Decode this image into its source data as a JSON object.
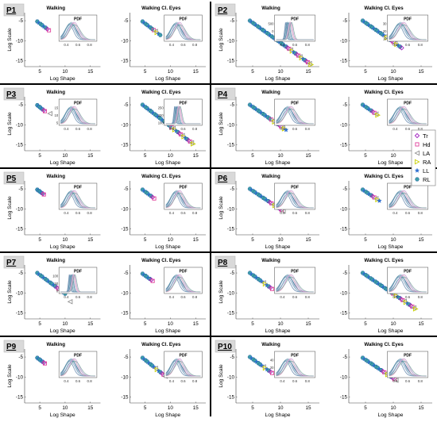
{
  "chart_data": {
    "type": "scatter",
    "x_label": "Log Shape",
    "y_label": "Log Scale",
    "xlim": [
      2,
      17
    ],
    "ylim": [
      -16.5,
      -3
    ],
    "xticks": [
      5,
      10,
      15
    ],
    "yticks": [
      -5,
      -10,
      -15
    ],
    "inset": {
      "title": "PDF",
      "xlim": [
        0.3,
        0.9
      ],
      "xticks": [
        "0.4",
        "0.6",
        "0.8"
      ]
    },
    "legend": {
      "placement": "right-middle",
      "entries": [
        {
          "label": "Tr",
          "marker": "diamond",
          "color": "#a020c0"
        },
        {
          "label": "Hd",
          "marker": "square",
          "color": "#e0409a"
        },
        {
          "label": "LA",
          "marker": "triangle-left",
          "color": "#909090"
        },
        {
          "label": "RA",
          "marker": "triangle-right",
          "color": "#c8d000"
        },
        {
          "label": "LL",
          "marker": "star",
          "color": "#2f6fd0"
        },
        {
          "label": "RL",
          "marker": "hexagon",
          "color": "#3fa0a8"
        }
      ]
    },
    "panels": [
      {
        "label": "P1",
        "conditions": [
          {
            "title": "Walking",
            "line": [
              [
                4.5,
                -5.2
              ],
              [
                6.8,
                -7.4
              ]
            ],
            "outliers": [],
            "inset_yticks": [
              "",
              "",
              ""
            ]
          },
          {
            "title": "Walking Cl. Eyes",
            "line": [
              [
                4.5,
                -5.2
              ],
              [
                8.0,
                -8.6
              ]
            ],
            "outliers": [],
            "inset_yticks": [
              "",
              "",
              ""
            ]
          }
        ]
      },
      {
        "label": "P2",
        "conditions": [
          {
            "title": "Walking",
            "line": [
              [
                4.5,
                -5.0
              ],
              [
                15.5,
                -16.0
              ]
            ],
            "outliers": [],
            "inset_yticks": [
              "500",
              "0",
              ""
            ]
          },
          {
            "title": "Walking Cl. Eyes",
            "line": [
              [
                4.5,
                -5.0
              ],
              [
                11.5,
                -11.8
              ]
            ],
            "outliers": [],
            "inset_yticks": [
              "30",
              "20",
              "10"
            ]
          }
        ]
      },
      {
        "label": "P3",
        "conditions": [
          {
            "title": "Walking",
            "line": [
              [
                4.5,
                -5.1
              ],
              [
                6.0,
                -6.6
              ]
            ],
            "outliers": [
              [
                7.0,
                -7.2
              ]
            ],
            "inset_yticks": [
              "15",
              "10",
              "5"
            ]
          },
          {
            "title": "Walking Cl. Eyes",
            "line": [
              [
                4.5,
                -5.0
              ],
              [
                14.5,
                -14.8
              ]
            ],
            "outliers": [],
            "inset_yticks": [
              "250",
              "200",
              "100"
            ]
          }
        ]
      },
      {
        "label": "P4",
        "conditions": [
          {
            "title": "Walking",
            "line": [
              [
                4.5,
                -5.0
              ],
              [
                11.0,
                -11.3
              ]
            ],
            "outliers": [],
            "inset_yticks": [
              "",
              "",
              ""
            ]
          },
          {
            "title": "Walking Cl. Eyes",
            "line": [
              [
                4.5,
                -5.0
              ],
              [
                7.2,
                -7.6
              ]
            ],
            "outliers": [],
            "inset_yticks": [
              "",
              "",
              ""
            ]
          }
        ]
      },
      {
        "label": "P5",
        "conditions": [
          {
            "title": "Walking",
            "line": [
              [
                4.5,
                -5.2
              ],
              [
                5.8,
                -6.4
              ]
            ],
            "outliers": [],
            "inset_yticks": [
              "",
              "",
              ""
            ]
          },
          {
            "title": "Walking Cl. Eyes",
            "line": [
              [
                4.5,
                -5.2
              ],
              [
                6.8,
                -7.4
              ]
            ],
            "outliers": [],
            "inset_yticks": [
              "",
              "",
              ""
            ]
          }
        ]
      },
      {
        "label": "P6",
        "conditions": [
          {
            "title": "Walking",
            "line": [
              [
                4.5,
                -5.0
              ],
              [
                10.5,
                -10.6
              ]
            ],
            "outliers": [],
            "inset_yticks": [
              "",
              "",
              ""
            ]
          },
          {
            "title": "Walking Cl. Eyes",
            "line": [
              [
                4.5,
                -5.2
              ],
              [
                7.5,
                -8.0
              ]
            ],
            "outliers": [],
            "inset_yticks": [
              "",
              "",
              ""
            ]
          }
        ]
      },
      {
        "label": "P7",
        "conditions": [
          {
            "title": "Walking",
            "line": [
              [
                4.5,
                -5.0
              ],
              [
                10.0,
                -10.2
              ]
            ],
            "outliers": [
              [
                11.0,
                -12.2
              ]
            ],
            "inset_yticks": [
              "100",
              "50",
              "0"
            ]
          },
          {
            "title": "Walking Cl. Eyes",
            "line": [
              [
                4.5,
                -5.2
              ],
              [
                6.5,
                -7.0
              ]
            ],
            "outliers": [],
            "inset_yticks": [
              "",
              "",
              ""
            ]
          }
        ]
      },
      {
        "label": "P8",
        "conditions": [
          {
            "title": "Walking",
            "line": [
              [
                4.5,
                -5.0
              ],
              [
                8.5,
                -9.0
              ]
            ],
            "outliers": [],
            "inset_yticks": [
              "",
              "",
              ""
            ]
          },
          {
            "title": "Walking Cl. Eyes",
            "line": [
              [
                4.5,
                -5.0
              ],
              [
                14.0,
                -14.0
              ]
            ],
            "outliers": [],
            "inset_yticks": [
              "",
              "",
              ""
            ]
          }
        ]
      },
      {
        "label": "P9",
        "conditions": [
          {
            "title": "Walking",
            "line": [
              [
                4.5,
                -5.2
              ],
              [
                6.0,
                -6.6
              ]
            ],
            "outliers": [],
            "inset_yticks": [
              "",
              "",
              ""
            ]
          },
          {
            "title": "Walking Cl. Eyes",
            "line": [
              [
                4.5,
                -5.2
              ],
              [
                9.0,
                -9.8
              ]
            ],
            "outliers": [],
            "inset_yticks": [
              "",
              "",
              ""
            ]
          }
        ]
      },
      {
        "label": "P10",
        "conditions": [
          {
            "title": "Walking",
            "line": [
              [
                4.5,
                -5.0
              ],
              [
                8.5,
                -9.0
              ]
            ],
            "outliers": [],
            "inset_yticks": [
              "40",
              "20",
              ""
            ]
          },
          {
            "title": "Walking Cl. Eyes",
            "line": [
              [
                4.5,
                -5.2
              ],
              [
                10.5,
                -10.8
              ]
            ],
            "outliers": [],
            "inset_yticks": [
              "",
              "",
              ""
            ]
          }
        ]
      }
    ]
  }
}
